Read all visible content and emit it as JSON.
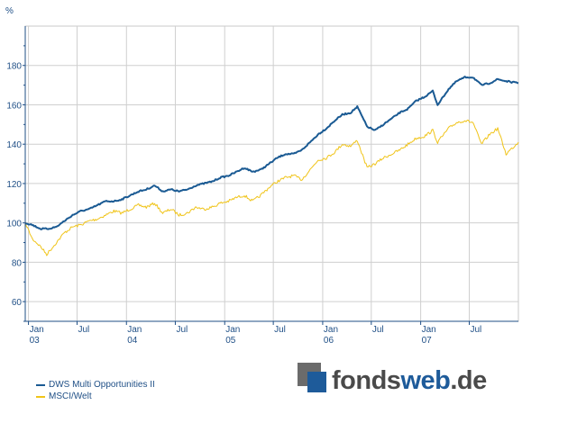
{
  "chart_data": {
    "type": "line",
    "ylabel": "%",
    "ylim": [
      50,
      200
    ],
    "yticks": [
      60,
      80,
      100,
      120,
      140,
      160,
      180
    ],
    "xlim": [
      "2002-12-20",
      "2007-12-31"
    ],
    "xticks": [
      {
        "date": "2003-01-01",
        "label": "Jan",
        "sublabel": "03"
      },
      {
        "date": "2003-07-01",
        "label": "Jul",
        "sublabel": ""
      },
      {
        "date": "2004-01-01",
        "label": "Jan",
        "sublabel": "04"
      },
      {
        "date": "2004-07-01",
        "label": "Jul",
        "sublabel": ""
      },
      {
        "date": "2005-01-01",
        "label": "Jan",
        "sublabel": "05"
      },
      {
        "date": "2005-07-01",
        "label": "Jul",
        "sublabel": ""
      },
      {
        "date": "2006-01-01",
        "label": "Jan",
        "sublabel": "06"
      },
      {
        "date": "2006-07-01",
        "label": "Jul",
        "sublabel": ""
      },
      {
        "date": "2007-01-01",
        "label": "Jan",
        "sublabel": "07"
      },
      {
        "date": "2007-07-01",
        "label": "Jul",
        "sublabel": ""
      }
    ],
    "grid": true,
    "legend_position": "bottom-left",
    "series": [
      {
        "name": "DWS Multi Opportunities II",
        "color": "#1a5a93",
        "x": [
          "2002-12-20",
          "2003-01-15",
          "2003-02-15",
          "2003-03-15",
          "2003-04-15",
          "2003-05-15",
          "2003-06-15",
          "2003-07-15",
          "2003-08-15",
          "2003-09-15",
          "2003-10-15",
          "2003-11-15",
          "2003-12-15",
          "2004-01-15",
          "2004-02-15",
          "2004-03-15",
          "2004-04-15",
          "2004-05-15",
          "2004-06-15",
          "2004-07-15",
          "2004-08-15",
          "2004-09-15",
          "2004-10-15",
          "2004-11-15",
          "2004-12-15",
          "2005-01-15",
          "2005-02-15",
          "2005-03-15",
          "2005-04-15",
          "2005-05-15",
          "2005-06-15",
          "2005-07-15",
          "2005-08-15",
          "2005-09-15",
          "2005-10-15",
          "2005-11-15",
          "2005-12-15",
          "2006-01-15",
          "2006-02-15",
          "2006-03-15",
          "2006-04-15",
          "2006-05-10",
          "2006-06-15",
          "2006-07-15",
          "2006-08-15",
          "2006-09-15",
          "2006-10-15",
          "2006-11-15",
          "2006-12-15",
          "2007-01-15",
          "2007-02-15",
          "2007-03-05",
          "2007-04-15",
          "2007-05-15",
          "2007-06-15",
          "2007-07-15",
          "2007-08-15",
          "2007-09-15",
          "2007-10-15",
          "2007-11-15",
          "2007-12-31"
        ],
        "values": [
          100,
          99,
          97,
          97,
          98,
          101,
          104,
          106,
          107,
          109,
          111,
          111,
          112,
          114,
          116,
          117,
          119,
          116,
          117,
          116,
          117,
          119,
          120,
          121,
          123,
          124,
          126,
          128,
          126,
          127,
          130,
          133,
          135,
          135,
          137,
          141,
          145,
          148,
          152,
          155,
          156,
          159,
          149,
          147,
          150,
          153,
          156,
          158,
          162,
          164,
          167,
          160,
          168,
          172,
          174,
          174,
          170,
          171,
          173,
          172,
          171
        ]
      },
      {
        "name": "MSCI/Welt",
        "color": "#f0c419",
        "x": [
          "2002-12-20",
          "2003-01-15",
          "2003-02-15",
          "2003-03-10",
          "2003-04-15",
          "2003-05-15",
          "2003-06-15",
          "2003-07-15",
          "2003-08-15",
          "2003-09-15",
          "2003-10-15",
          "2003-11-15",
          "2003-12-15",
          "2004-01-15",
          "2004-02-15",
          "2004-03-15",
          "2004-04-15",
          "2004-05-15",
          "2004-06-15",
          "2004-07-15",
          "2004-08-15",
          "2004-09-15",
          "2004-10-15",
          "2004-11-15",
          "2004-12-15",
          "2005-01-15",
          "2005-02-15",
          "2005-03-15",
          "2005-04-15",
          "2005-05-15",
          "2005-06-15",
          "2005-07-15",
          "2005-08-15",
          "2005-09-15",
          "2005-10-15",
          "2005-11-15",
          "2005-12-15",
          "2006-01-15",
          "2006-02-15",
          "2006-03-15",
          "2006-04-15",
          "2006-05-10",
          "2006-06-15",
          "2006-07-15",
          "2006-08-15",
          "2006-09-15",
          "2006-10-15",
          "2006-11-15",
          "2006-12-15",
          "2007-01-15",
          "2007-02-15",
          "2007-03-05",
          "2007-04-15",
          "2007-05-15",
          "2007-06-15",
          "2007-07-15",
          "2007-08-15",
          "2007-09-15",
          "2007-10-15",
          "2007-11-15",
          "2007-12-31"
        ],
        "values": [
          100,
          92,
          88,
          84,
          90,
          95,
          98,
          99,
          101,
          102,
          104,
          106,
          105,
          107,
          109,
          108,
          110,
          105,
          107,
          104,
          105,
          108,
          107,
          108,
          110,
          111,
          113,
          114,
          111,
          114,
          118,
          121,
          123,
          124,
          122,
          127,
          132,
          133,
          136,
          140,
          139,
          142,
          128,
          130,
          133,
          135,
          137,
          140,
          143,
          144,
          147,
          141,
          148,
          151,
          152,
          151,
          140,
          145,
          148,
          135,
          141
        ]
      }
    ]
  },
  "logo": {
    "part1": "fonds",
    "part2": "web",
    "part3": ".de"
  }
}
